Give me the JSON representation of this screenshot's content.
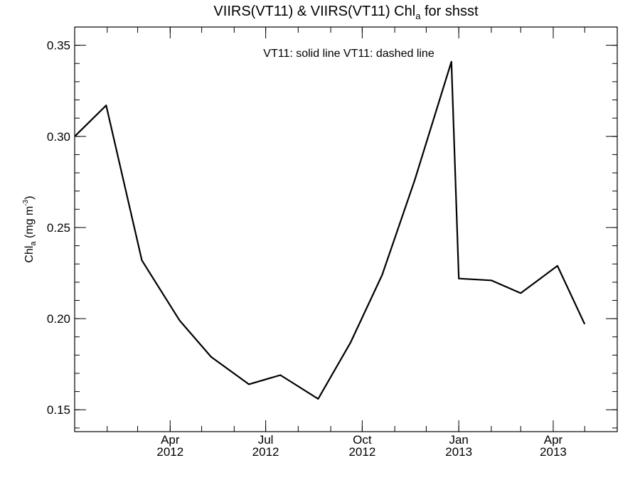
{
  "chart_data": {
    "type": "line",
    "title_main": "VIIRS(VT11) & VIIRS(VT11)  Chl",
    "title_sub": "a",
    "title_tail": " for shsst",
    "ylabel_main": "Chl",
    "ylabel_sub": "a",
    "ylabel_unit": " (mg m",
    "ylabel_sup": "-3",
    "ylabel_close": ")",
    "annotation": "VT11: solid line   VT11: dashed line",
    "ylim": [
      0.138,
      0.36
    ],
    "xlim": [
      "2012-01-01",
      "2013-06-01"
    ],
    "yticks": [
      "0.15",
      "0.20",
      "0.25",
      "0.30",
      "0.35"
    ],
    "ytick_values": [
      0.15,
      0.2,
      0.25,
      0.3,
      0.35
    ],
    "xticks": [
      {
        "date": "2012-04-01",
        "month": "Apr",
        "year": "2012"
      },
      {
        "date": "2012-07-01",
        "month": "Jul",
        "year": "2012"
      },
      {
        "date": "2012-10-01",
        "month": "Oct",
        "year": "2012"
      },
      {
        "date": "2013-01-01",
        "month": "Jan",
        "year": "2013"
      },
      {
        "date": "2013-04-01",
        "month": "Apr",
        "year": "2013"
      }
    ],
    "series": [
      {
        "style": "solid",
        "x": [
          "2012-01-01",
          "2012-01-31",
          "2012-03-05",
          "2012-04-10",
          "2012-05-10",
          "2012-06-15",
          "2012-07-15",
          "2012-08-20",
          "2012-09-20",
          "2012-10-20",
          "2012-11-20",
          "2012-12-25",
          "2013-01-01",
          "2013-02-01",
          "2013-03-01",
          "2013-04-05",
          "2013-05-01"
        ],
        "values": [
          0.3,
          0.317,
          0.232,
          0.199,
          0.179,
          0.164,
          0.169,
          0.156,
          0.187,
          0.224,
          0.276,
          0.341,
          0.222,
          0.221,
          0.214,
          0.229,
          0.197
        ]
      }
    ]
  }
}
